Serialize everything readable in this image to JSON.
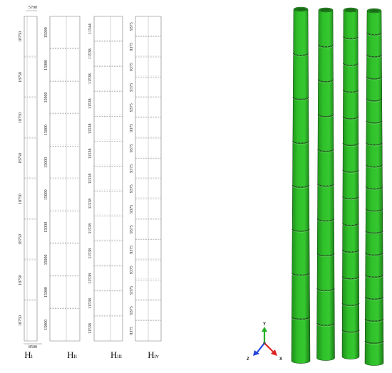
{
  "diagram": {
    "top_width_label": "5700",
    "bottom_width_label": "8500",
    "towers": [
      {
        "id": "Hi",
        "label_main": "H",
        "label_sub": "i",
        "segment_label": "18750",
        "segment_labels": [
          "18750",
          "18750",
          "18750",
          "18750",
          "18750",
          "18750",
          "18750",
          "18750"
        ]
      },
      {
        "id": "Hii",
        "label_main": "H",
        "label_sub": "ii",
        "segment_label": "15000",
        "segment_labels": [
          "15000",
          "15000",
          "15000",
          "15000",
          "15000",
          "15000",
          "15000",
          "15000",
          "15000",
          "15000"
        ]
      },
      {
        "id": "Hiii",
        "label_main": "H",
        "label_sub": "iii",
        "segment_label": "11538",
        "segment_labels": [
          "11544",
          "11538",
          "11538",
          "11538",
          "11538",
          "11538",
          "11538",
          "11538",
          "11538",
          "11538",
          "11538",
          "11538",
          "11538"
        ]
      },
      {
        "id": "Hiv",
        "label_main": "H",
        "label_sub": "iv",
        "segment_label": "9375",
        "segment_labels": [
          "9375",
          "9375",
          "9375",
          "9375",
          "9375",
          "9375",
          "9375",
          "9375",
          "9375",
          "9375",
          "9375",
          "9375",
          "9375",
          "9375",
          "9375",
          "9375"
        ]
      }
    ],
    "model_color": "#2fc02a",
    "axes": {
      "y": "Y",
      "z": "Z",
      "x": "X"
    }
  }
}
